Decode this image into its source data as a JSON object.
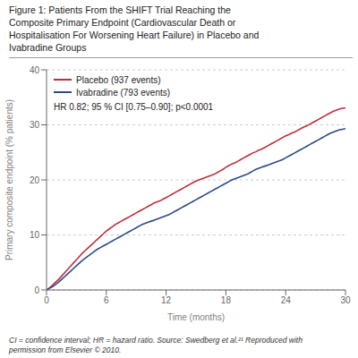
{
  "chart_data": {
    "type": "line",
    "title": "Figure 1: Patients From the SHIFT Trial Reaching the\nComposite Primary Endpoint (Cardiovascular Death or\nHospitalisation For Worsening Heart Failure) in Placebo and\nIvabradine Groups",
    "footnote": "CI = confidence interval; HR = hazard ratio. Source: Swedberg et al.²¹ Reproduced with\npermission from Elsevier © 2010.",
    "xlabel": "Time (months)",
    "ylabel": "Primary composite endpoint (% patients)",
    "annotations": [
      "HR 0.82; 95 % CI [0.75–0.90]; p<0.0001"
    ],
    "x": [
      0.0,
      0.3,
      0.6,
      0.9,
      1.2,
      1.5,
      1.8,
      2.1,
      2.4,
      2.7,
      3.0,
      3.3,
      3.6,
      3.9,
      4.2,
      4.5,
      4.8,
      5.1,
      5.4,
      5.7,
      6.0,
      6.3,
      6.6,
      6.9,
      7.2,
      7.5,
      7.8,
      8.1,
      8.4,
      8.7,
      9.0,
      9.3,
      9.6,
      9.9,
      10.2,
      10.5,
      10.8,
      11.1,
      11.4,
      11.7,
      12.0,
      12.3,
      12.6,
      12.9,
      13.2,
      13.5,
      13.8,
      14.1,
      14.4,
      14.7,
      15.0,
      15.3,
      15.6,
      15.9,
      16.2,
      16.5,
      16.8,
      17.1,
      17.4,
      17.7,
      18.0,
      18.3,
      18.6,
      18.9,
      19.2,
      19.5,
      19.8,
      20.1,
      20.4,
      20.7,
      21.0,
      21.3,
      21.6,
      21.9,
      22.2,
      22.5,
      22.8,
      23.1,
      23.4,
      23.7,
      24.0,
      24.3,
      24.6,
      24.9,
      25.2,
      25.5,
      25.8,
      26.1,
      26.4,
      26.7,
      27.0,
      27.3,
      27.6,
      27.9,
      28.2,
      28.5,
      28.8,
      29.1,
      29.4,
      29.7,
      30.0
    ],
    "series": [
      {
        "name": "Placebo (937 events)",
        "color": "#c02d3a",
        "values": [
          0.0,
          0.4,
          0.9,
          1.4,
          1.9,
          2.5,
          3.1,
          3.7,
          4.3,
          4.9,
          5.5,
          6.1,
          6.7,
          7.2,
          7.7,
          8.2,
          8.7,
          9.2,
          9.7,
          10.2,
          10.7,
          11.1,
          11.5,
          11.9,
          12.2,
          12.5,
          12.8,
          13.1,
          13.4,
          13.7,
          14.0,
          14.3,
          14.6,
          14.9,
          15.2,
          15.5,
          15.8,
          16.0,
          16.2,
          16.5,
          16.8,
          17.1,
          17.4,
          17.7,
          18.0,
          18.3,
          18.6,
          18.9,
          19.2,
          19.5,
          19.8,
          20.0,
          20.2,
          20.4,
          20.6,
          20.8,
          21.0,
          21.3,
          21.6,
          21.9,
          22.3,
          22.6,
          22.9,
          23.1,
          23.4,
          23.7,
          24.0,
          24.3,
          24.6,
          24.9,
          25.1,
          25.4,
          25.6,
          25.9,
          26.2,
          26.5,
          26.8,
          27.1,
          27.4,
          27.7,
          28.0,
          28.2,
          28.5,
          28.7,
          29.0,
          29.3,
          29.6,
          29.8,
          30.1,
          30.4,
          30.7,
          31.0,
          31.3,
          31.6,
          31.9,
          32.2,
          32.5,
          32.7,
          32.9,
          33.0,
          33.1
        ]
      },
      {
        "name": "Ivabradine (793 events)",
        "color": "#2b4a8a",
        "values": [
          0.0,
          0.3,
          0.6,
          1.0,
          1.4,
          1.9,
          2.4,
          2.9,
          3.4,
          3.9,
          4.4,
          4.9,
          5.4,
          5.8,
          6.2,
          6.6,
          7.0,
          7.4,
          7.7,
          8.0,
          8.3,
          8.6,
          8.9,
          9.2,
          9.5,
          9.8,
          10.1,
          10.4,
          10.7,
          11.0,
          11.3,
          11.6,
          11.9,
          12.1,
          12.3,
          12.5,
          12.7,
          12.9,
          13.1,
          13.3,
          13.5,
          13.7,
          14.0,
          14.3,
          14.6,
          14.9,
          15.2,
          15.5,
          15.8,
          16.1,
          16.4,
          16.7,
          17.0,
          17.3,
          17.6,
          17.9,
          18.2,
          18.5,
          18.8,
          19.1,
          19.4,
          19.7,
          20.0,
          20.2,
          20.4,
          20.6,
          20.8,
          21.0,
          21.3,
          21.6,
          21.9,
          22.1,
          22.3,
          22.5,
          22.7,
          22.9,
          23.1,
          23.3,
          23.5,
          23.7,
          24.0,
          24.3,
          24.6,
          24.9,
          25.2,
          25.5,
          25.8,
          26.1,
          26.4,
          26.7,
          27.0,
          27.3,
          27.6,
          27.9,
          28.2,
          28.5,
          28.7,
          28.9,
          29.1,
          29.2,
          29.3
        ]
      }
    ],
    "xlim": [
      0,
      30
    ],
    "ylim": [
      0,
      40
    ],
    "xticks": [
      0,
      6,
      12,
      18,
      24,
      30
    ],
    "yticks": [
      0,
      10,
      20,
      30,
      40
    ],
    "grid": "y",
    "legend": "upper left"
  }
}
